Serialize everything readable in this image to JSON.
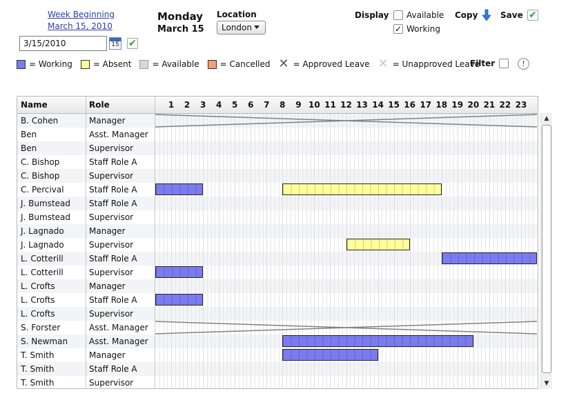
{
  "week": {
    "line1": "Week Beginning",
    "line2": "March 15, 2010"
  },
  "date_input": {
    "value": "3/15/2010"
  },
  "calendar_label": "15",
  "day": {
    "name": "Monday",
    "date": "March 15"
  },
  "location": {
    "label": "Location",
    "selected": "London"
  },
  "display": {
    "label": "Display",
    "available_label": "Available",
    "working_label": "Working",
    "available_checked": false,
    "working_checked": true
  },
  "copy_label": "Copy",
  "save_label": "Save",
  "legend": {
    "working": "= Working",
    "absent": "= Absent",
    "available": "= Available",
    "cancelled": "= Cancelled",
    "approved_leave": "= Approved Leave",
    "unapproved_leave": "= Unapproved Leave"
  },
  "filter_label": "Filter",
  "colors": {
    "working": "#7b7bf0",
    "absent": "#ffff99",
    "available": "#d8d8d8",
    "cancelled": "#f4a070"
  },
  "columns": {
    "name": "Name",
    "role": "Role"
  },
  "hours": [
    "1",
    "2",
    "3",
    "4",
    "5",
    "6",
    "7",
    "8",
    "9",
    "10",
    "11",
    "12",
    "13",
    "14",
    "15",
    "16",
    "17",
    "18",
    "19",
    "20",
    "21",
    "22",
    "23"
  ],
  "rows": [
    {
      "name": "B. Cohen",
      "role": "Manager",
      "leave": "approved"
    },
    {
      "name": "Ben",
      "role": "Asst. Manager"
    },
    {
      "name": "Ben",
      "role": "Supervisor"
    },
    {
      "name": "C. Bishop",
      "role": "Staff Role A"
    },
    {
      "name": "C. Bishop",
      "role": "Supervisor"
    },
    {
      "name": "C. Percival",
      "role": "Staff Role A",
      "shifts": [
        {
          "type": "working",
          "start": 0,
          "end": 3
        },
        {
          "type": "absent",
          "start": 8,
          "end": 18
        }
      ]
    },
    {
      "name": "J. Bumstead",
      "role": "Staff Role A"
    },
    {
      "name": "J. Bumstead",
      "role": "Supervisor"
    },
    {
      "name": "J. Lagnado",
      "role": "Manager"
    },
    {
      "name": "J. Lagnado",
      "role": "Supervisor",
      "shifts": [
        {
          "type": "absent",
          "start": 12,
          "end": 16
        }
      ]
    },
    {
      "name": "L. Cotterill",
      "role": "Staff Role A",
      "shifts": [
        {
          "type": "working",
          "start": 18,
          "end": 24
        }
      ]
    },
    {
      "name": "L. Cotterill",
      "role": "Supervisor",
      "shifts": [
        {
          "type": "working",
          "start": 0,
          "end": 3
        }
      ]
    },
    {
      "name": "L. Crofts",
      "role": "Manager"
    },
    {
      "name": "L. Crofts",
      "role": "Staff Role A",
      "shifts": [
        {
          "type": "working",
          "start": 0,
          "end": 3
        }
      ]
    },
    {
      "name": "L. Crofts",
      "role": "Supervisor"
    },
    {
      "name": "S. Forster",
      "role": "Asst. Manager",
      "leave": "approved"
    },
    {
      "name": "S. Newman",
      "role": "Asst. Manager",
      "shifts": [
        {
          "type": "working",
          "start": 8,
          "end": 20
        }
      ]
    },
    {
      "name": "T. Smith",
      "role": "Manager",
      "shifts": [
        {
          "type": "working",
          "start": 8,
          "end": 14
        }
      ]
    },
    {
      "name": "T. Smith",
      "role": "Staff Role A"
    },
    {
      "name": "T. Smith",
      "role": "Supervisor"
    }
  ]
}
